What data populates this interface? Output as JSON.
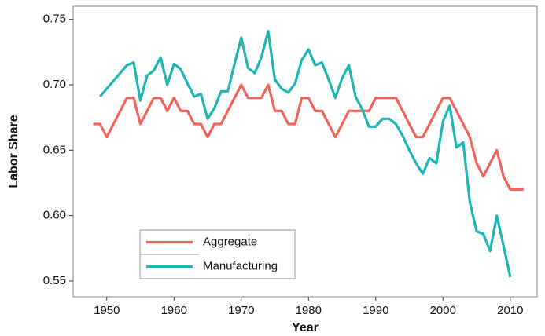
{
  "chart_data": {
    "type": "line",
    "xlabel": "Year",
    "ylabel": "Labor Share",
    "xlim": [
      1945,
      2014
    ],
    "ylim": [
      0.538,
      0.76
    ],
    "xticks": [
      1950,
      1960,
      1970,
      1980,
      1990,
      2000,
      2010
    ],
    "yticks": [
      0.55,
      {
        "value": 0.6,
        "label": "0.60"
      },
      0.65,
      {
        "value": 0.7,
        "label": "0.70"
      },
      0.75
    ],
    "grid": false,
    "legend": "lower left",
    "series": [
      {
        "name": "Aggregate",
        "color": "#f0645c",
        "x": [
          1948,
          1949,
          1950,
          1951,
          1952,
          1953,
          1954,
          1955,
          1956,
          1957,
          1958,
          1959,
          1960,
          1961,
          1962,
          1963,
          1964,
          1965,
          1966,
          1967,
          1968,
          1969,
          1970,
          1971,
          1972,
          1973,
          1974,
          1975,
          1976,
          1977,
          1978,
          1979,
          1980,
          1981,
          1982,
          1983,
          1984,
          1985,
          1986,
          1987,
          1988,
          1989,
          1990,
          1991,
          1992,
          1993,
          1994,
          1995,
          1996,
          1997,
          1998,
          1999,
          2000,
          2001,
          2002,
          2003,
          2004,
          2005,
          2006,
          2007,
          2008,
          2009,
          2010,
          2011,
          2012
        ],
        "values": [
          0.67,
          0.67,
          0.66,
          0.67,
          0.68,
          0.69,
          0.69,
          0.67,
          0.68,
          0.69,
          0.69,
          0.68,
          0.69,
          0.68,
          0.68,
          0.67,
          0.67,
          0.66,
          0.67,
          0.67,
          0.68,
          0.69,
          0.7,
          0.69,
          0.69,
          0.69,
          0.7,
          0.68,
          0.68,
          0.67,
          0.67,
          0.69,
          0.69,
          0.68,
          0.68,
          0.67,
          0.66,
          0.67,
          0.68,
          0.68,
          0.68,
          0.68,
          0.69,
          0.69,
          0.69,
          0.69,
          0.68,
          0.67,
          0.66,
          0.66,
          0.67,
          0.68,
          0.69,
          0.69,
          0.68,
          0.67,
          0.66,
          0.64,
          0.63,
          0.64,
          0.65,
          0.63,
          0.62,
          0.62,
          0.62
        ]
      },
      {
        "name": "Manufacturing",
        "color": "#1fb5b5",
        "x": [
          1949,
          1950,
          1951,
          1952,
          1953,
          1954,
          1955,
          1956,
          1957,
          1958,
          1959,
          1960,
          1961,
          1962,
          1963,
          1964,
          1965,
          1966,
          1967,
          1968,
          1969,
          1970,
          1971,
          1972,
          1973,
          1974,
          1975,
          1976,
          1977,
          1978,
          1979,
          1980,
          1981,
          1982,
          1983,
          1984,
          1985,
          1986,
          1987,
          1988,
          1989,
          1990,
          1991,
          1992,
          1993,
          1994,
          1995,
          1996,
          1997,
          1998,
          1999,
          2000,
          2001,
          2002,
          2003,
          2004,
          2005,
          2006,
          2007,
          2008,
          2009,
          2010
        ],
        "values": [
          0.691,
          0.697,
          0.703,
          0.709,
          0.715,
          0.717,
          0.688,
          0.707,
          0.711,
          0.721,
          0.7,
          0.716,
          0.712,
          0.701,
          0.691,
          0.693,
          0.674,
          0.682,
          0.695,
          0.695,
          0.716,
          0.736,
          0.713,
          0.709,
          0.721,
          0.741,
          0.704,
          0.697,
          0.694,
          0.701,
          0.719,
          0.727,
          0.715,
          0.717,
          0.704,
          0.69,
          0.705,
          0.715,
          0.691,
          0.681,
          0.668,
          0.668,
          0.674,
          0.674,
          0.67,
          0.661,
          0.65,
          0.64,
          0.632,
          0.644,
          0.64,
          0.672,
          0.684,
          0.652,
          0.656,
          0.61,
          0.588,
          0.586,
          0.573,
          0.6,
          0.577,
          0.553
        ]
      }
    ]
  }
}
